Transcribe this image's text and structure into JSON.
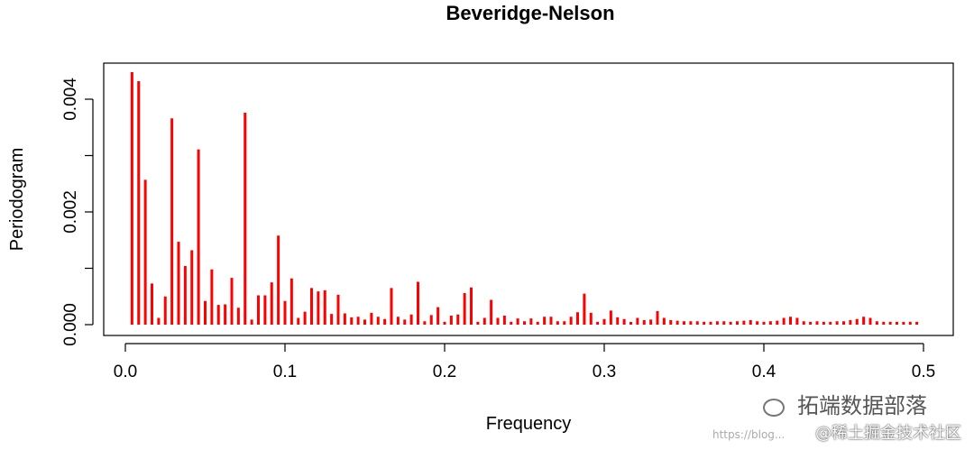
{
  "chart_data": {
    "type": "bar",
    "title": "Beveridge-Nelson",
    "xlabel": "Frequency",
    "ylabel": "Periodogram",
    "xlim": [
      0,
      0.5
    ],
    "ylim": [
      0,
      0.0045
    ],
    "x_ticks": [
      "0.0",
      "0.1",
      "0.2",
      "0.3",
      "0.4",
      "0.5"
    ],
    "x_tick_values": [
      0,
      0.1,
      0.2,
      0.3,
      0.4,
      0.5
    ],
    "y_ticks": [
      "0.000",
      "0.002",
      "0.004"
    ],
    "y_tick_values": [
      0,
      0.002,
      0.004
    ],
    "y_minor_tick_values": [
      0.001,
      0.003
    ],
    "grid": false,
    "bar_color": "#ff0000",
    "frequency_step": 0.0041667,
    "values": [
      0.00448,
      0.00432,
      0.00257,
      0.00073,
      0.00012,
      0.0005,
      0.00366,
      0.00147,
      0.00104,
      0.00132,
      0.00311,
      0.00042,
      0.00098,
      0.00035,
      0.00036,
      0.00083,
      0.0003,
      0.00376,
      9e-05,
      0.00052,
      0.00052,
      0.00075,
      0.00158,
      0.00042,
      0.00082,
      0.00012,
      0.00023,
      0.00065,
      0.00059,
      0.00061,
      0.00019,
      0.00053,
      0.0002,
      0.00013,
      0.00014,
      9e-05,
      0.00021,
      0.00014,
      0.0001,
      0.00065,
      0.00014,
      9e-05,
      0.00018,
      0.00076,
      6e-05,
      0.00017,
      0.00031,
      5e-05,
      0.00016,
      0.00018,
      0.00056,
      0.00066,
      5e-05,
      0.00012,
      0.00044,
      0.00012,
      0.00016,
      5e-05,
      0.00011,
      6e-05,
      0.00011,
      5e-05,
      0.00014,
      0.00014,
      6e-05,
      6e-05,
      0.00014,
      0.00022,
      0.00055,
      0.00021,
      5e-05,
      0.0001,
      0.00025,
      0.00013,
      0.0001,
      4e-05,
      0.00012,
      8e-05,
      9e-05,
      0.00024,
      0.00012,
      8e-05,
      7e-05,
      6e-05,
      6e-05,
      6e-05,
      5e-05,
      5e-05,
      6e-05,
      6e-05,
      5e-05,
      6e-05,
      7e-05,
      8e-05,
      6e-05,
      5e-05,
      6e-05,
      7e-05,
      0.00012,
      0.00014,
      0.00012,
      6e-05,
      5e-05,
      6e-05,
      5e-05,
      5e-05,
      6e-05,
      6e-05,
      8e-05,
      0.0001,
      0.00014,
      0.00012,
      6e-05,
      5e-05,
      5e-05,
      5e-05,
      4e-05,
      5e-05,
      5e-05
    ]
  },
  "watermark": {
    "brand": "拓端数据部落",
    "community": "@稀土掘金技术社区",
    "url": "https://blog..."
  }
}
